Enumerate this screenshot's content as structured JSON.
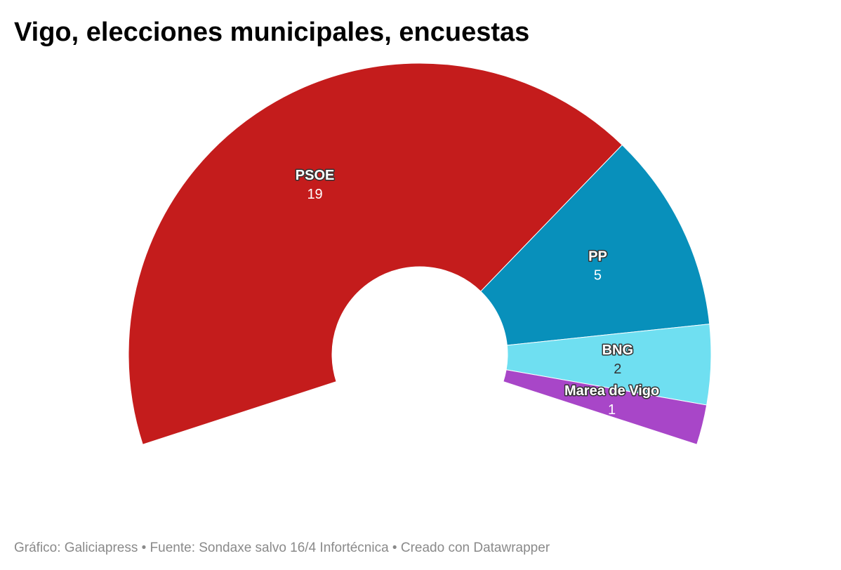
{
  "chart_data": {
    "type": "donut",
    "title": "Vigo, elecciones municipales, encuestas",
    "categories": [
      "PSOE",
      "PP",
      "BNG",
      "Marea de Vigo"
    ],
    "values": [
      19,
      5,
      2,
      1
    ],
    "colors": [
      "#c41c1c",
      "#0890bb",
      "#6fdff1",
      "#a846c8"
    ],
    "source": "Gráfico: Galiciapress • Fuente: Sondaxe salvo 16/4 Infortécnica • Creado con Datawrapper"
  }
}
